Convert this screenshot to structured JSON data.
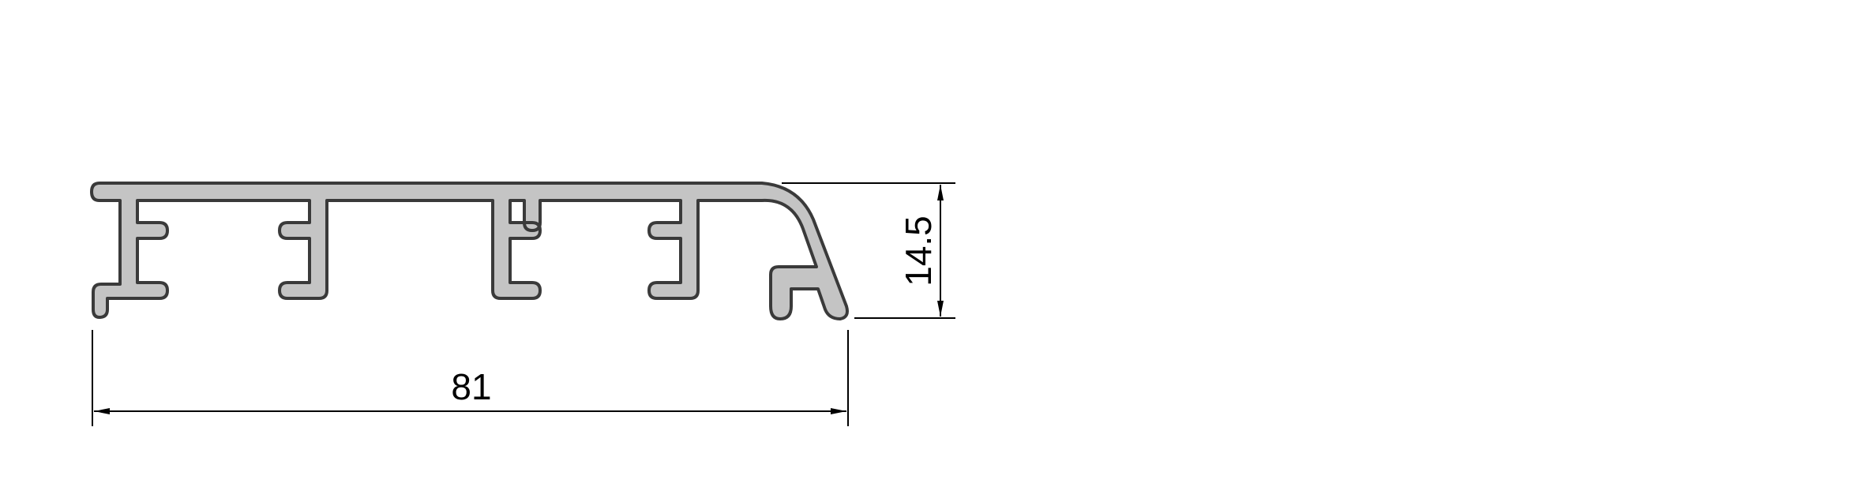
{
  "drawing": {
    "dimensions": {
      "width_label": "81",
      "height_label": "14.5"
    },
    "colors": {
      "profile_fill": "#c4c4c4",
      "profile_stroke": "#3a3a3a",
      "dimension_line": "#000000"
    }
  }
}
